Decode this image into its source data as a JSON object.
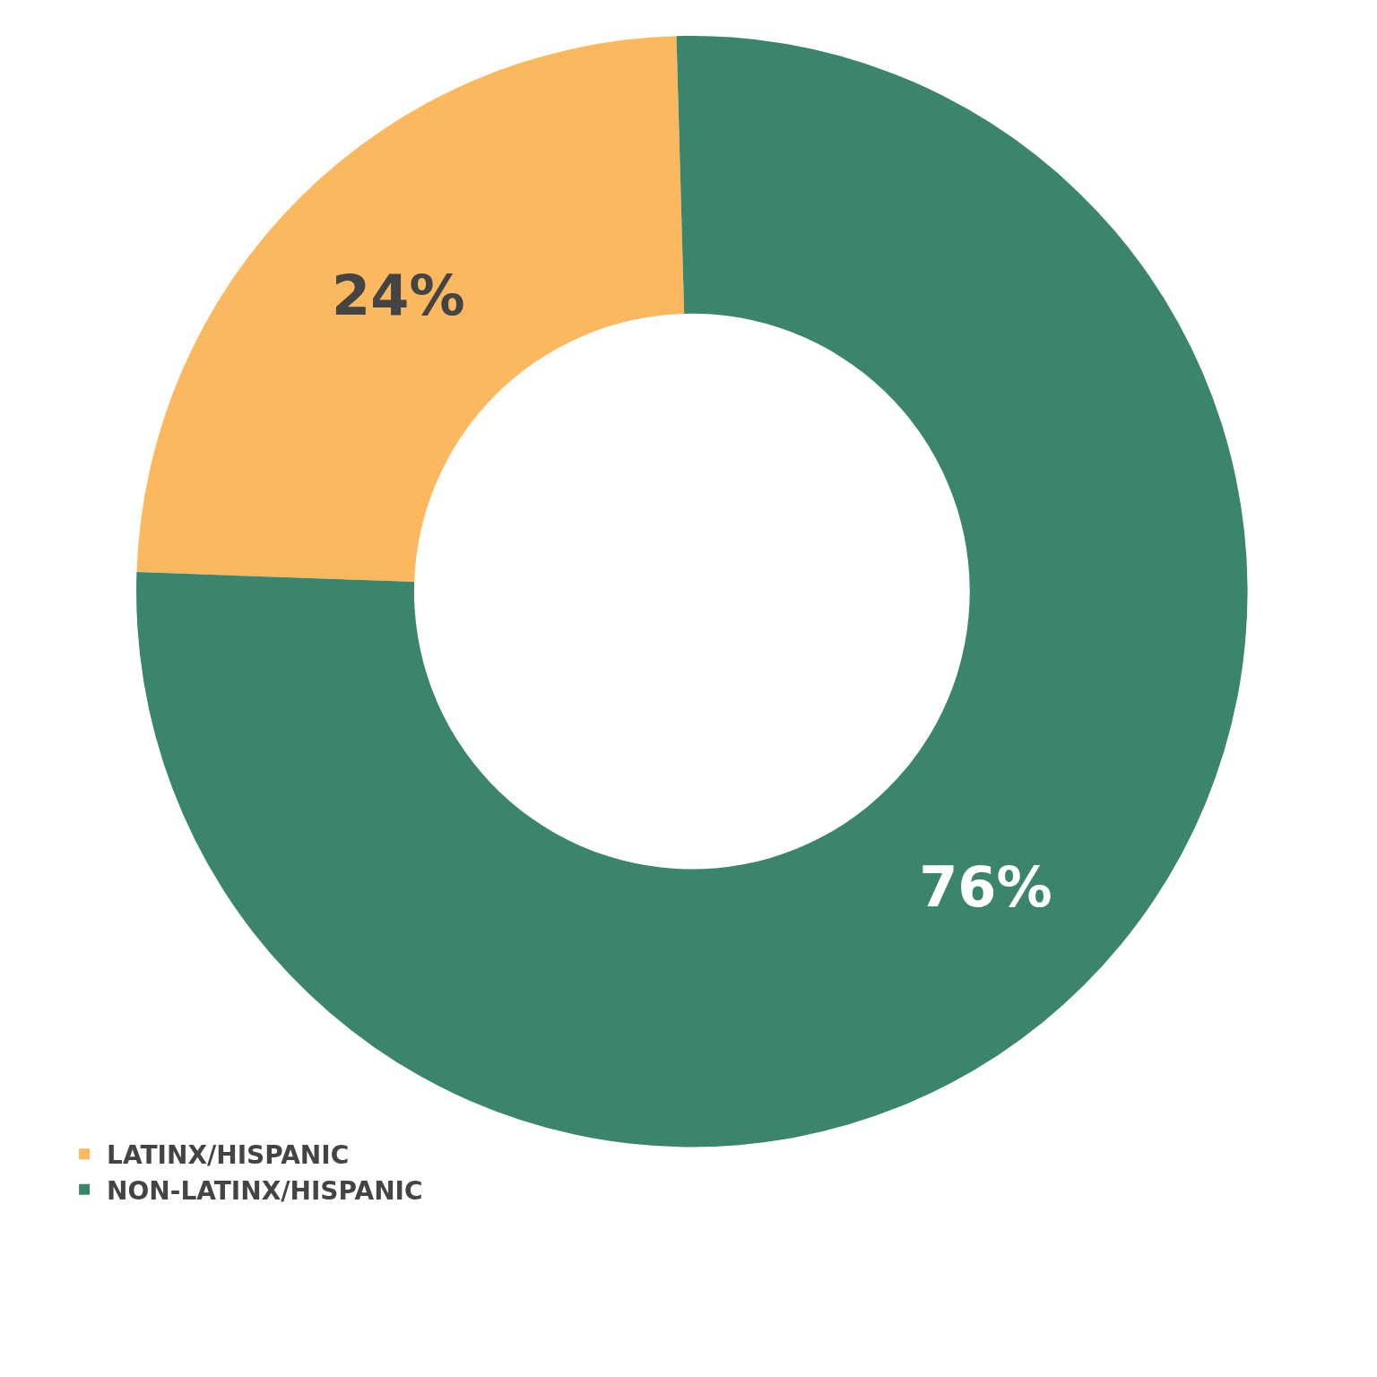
{
  "chart_data": {
    "type": "donut",
    "categories": [
      "LATINX/HISPANIC",
      "NON-LATINX/HISPANIC"
    ],
    "values": [
      24,
      76
    ],
    "colors": [
      "#fbb85f",
      "#3a856b"
    ],
    "value_labels": [
      "24%",
      "76%"
    ],
    "legend": "bottom left"
  }
}
